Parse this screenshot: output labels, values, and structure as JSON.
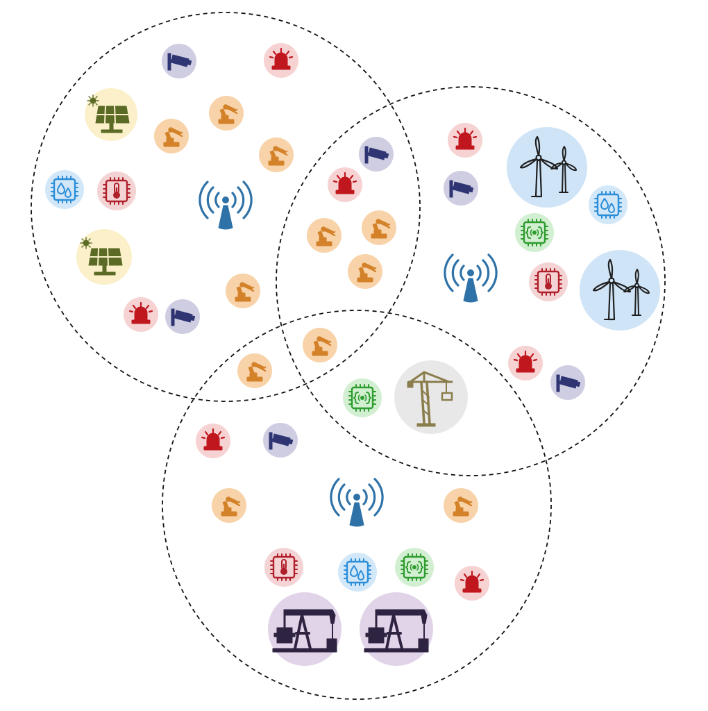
{
  "diagram": {
    "cells": [
      {
        "name": "cell-left",
        "tower": "antenna-icon"
      },
      {
        "name": "cell-right",
        "tower": "antenna-icon"
      },
      {
        "name": "cell-bottom",
        "tower": "antenna-icon"
      }
    ],
    "icon_types": {
      "robot-arm-icon": {
        "fill": "#f8d3a9",
        "fg": "#d4822a"
      },
      "siren-icon": {
        "fill": "#f6d2d2",
        "fg": "#c0161d"
      },
      "cctv-camera-icon": {
        "fill": "#cfcde2",
        "fg": "#2f3573"
      },
      "humidity-chip-icon": {
        "fill": "#d2e7f8",
        "fg": "#2a8ed8"
      },
      "thermometer-chip-icon": {
        "fill": "#f4d3d4",
        "fg": "#b0202a"
      },
      "iot-chip-icon": {
        "fill": "#d2efd1",
        "fg": "#2e9c2e"
      },
      "solar-panel-icon": {
        "fill": "#fbf0c9",
        "fg": "#5b6b26"
      },
      "wind-turbine-icon": {
        "fill": "#cfe4f7",
        "fg": "#1f1f1f"
      },
      "construction-crane-icon": {
        "fill": "#e8e8e8",
        "fg": "#8a7d4c"
      },
      "oil-pump-icon": {
        "fill": "#e1d3e8",
        "fg": "#2e2340"
      },
      "antenna-icon": {
        "fill": "none",
        "fg": "#2e72a8"
      }
    },
    "line_color": "#111111"
  }
}
